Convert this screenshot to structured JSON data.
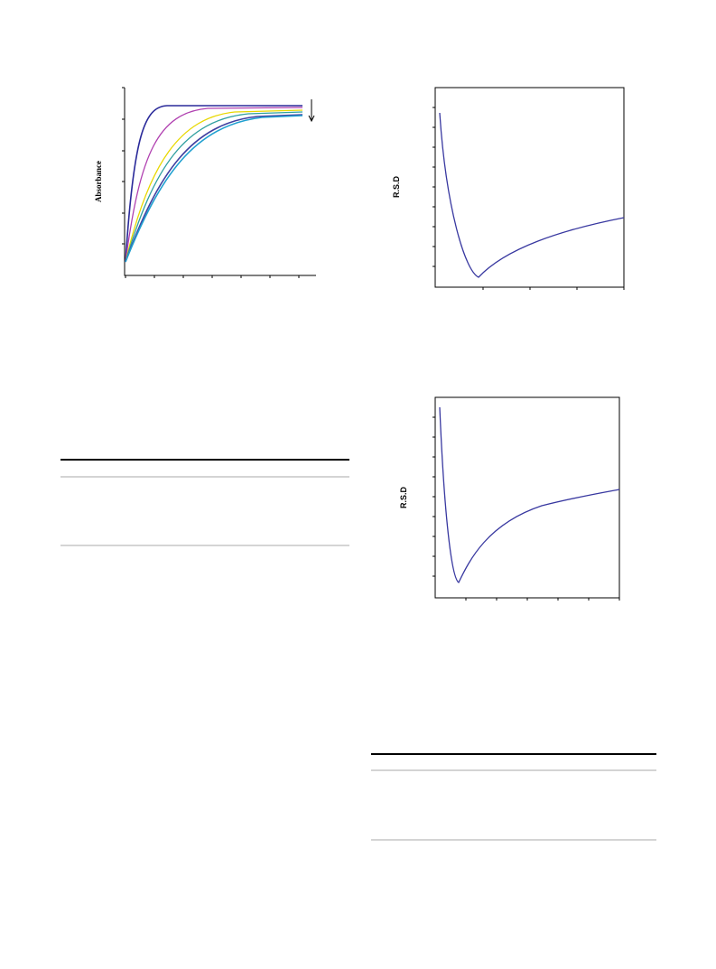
{
  "figures": [
    {
      "ylabel": "Absorbance"
    },
    {
      "ylabel": "R.S.D"
    },
    {
      "ylabel": "R.S.D"
    }
  ]
}
